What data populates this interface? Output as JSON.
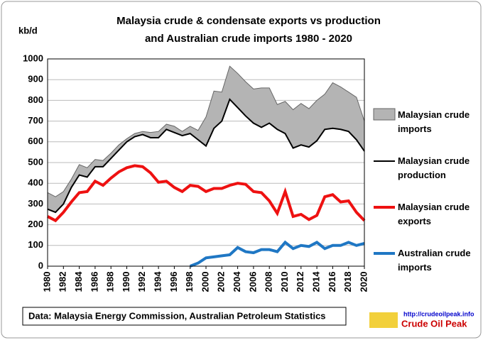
{
  "chart_data": {
    "type": "line",
    "title": [
      "Malaysia crude & condensate exports vs production",
      "and Australian crude imports 1980 - 2020"
    ],
    "y_label": "kb/d",
    "x": [
      1980,
      1981,
      1982,
      1983,
      1984,
      1985,
      1986,
      1987,
      1988,
      1989,
      1990,
      1991,
      1992,
      1993,
      1994,
      1995,
      1996,
      1997,
      1998,
      1999,
      2000,
      2001,
      2002,
      2003,
      2004,
      2005,
      2006,
      2007,
      2008,
      2009,
      2010,
      2011,
      2012,
      2013,
      2014,
      2015,
      2016,
      2017,
      2018,
      2019,
      2020
    ],
    "series": [
      {
        "name": "Malaysian crude imports",
        "color": "#b4b4b4",
        "style": "area",
        "base_series": 1,
        "values": [
          80,
          75,
          60,
          40,
          50,
          45,
          35,
          30,
          25,
          25,
          15,
          15,
          15,
          25,
          30,
          25,
          30,
          20,
          35,
          45,
          140,
          180,
          140,
          160,
          165,
          165,
          165,
          190,
          170,
          120,
          155,
          185,
          200,
          185,
          195,
          170,
          220,
          205,
          190,
          205,
          145
        ]
      },
      {
        "name": "Malaysian crude production",
        "color": "#000000",
        "style": "line",
        "values": [
          275,
          260,
          300,
          380,
          440,
          430,
          480,
          480,
          520,
          560,
          600,
          625,
          635,
          620,
          620,
          660,
          645,
          630,
          640,
          610,
          580,
          665,
          700,
          805,
          765,
          725,
          690,
          670,
          690,
          660,
          640,
          570,
          585,
          575,
          605,
          660,
          665,
          660,
          650,
          610,
          555
        ]
      },
      {
        "name": "Malaysian crude exports",
        "color": "#ee1111",
        "style": "line",
        "values": [
          240,
          220,
          260,
          310,
          355,
          360,
          410,
          390,
          425,
          455,
          475,
          485,
          480,
          450,
          405,
          410,
          380,
          360,
          390,
          385,
          360,
          375,
          375,
          390,
          400,
          395,
          360,
          355,
          315,
          255,
          360,
          240,
          250,
          225,
          245,
          335,
          345,
          310,
          315,
          260,
          220
        ]
      },
      {
        "name": "Australian crude imports",
        "color": "#1f77c4",
        "style": "line",
        "values": [
          null,
          null,
          null,
          null,
          null,
          null,
          null,
          null,
          null,
          null,
          null,
          null,
          null,
          null,
          null,
          null,
          null,
          null,
          0,
          15,
          40,
          45,
          50,
          55,
          90,
          70,
          65,
          80,
          80,
          70,
          115,
          85,
          100,
          95,
          115,
          85,
          100,
          100,
          115,
          100,
          110
        ]
      }
    ],
    "xlim": [
      1980,
      2020
    ],
    "xticks": [
      1980,
      1982,
      1984,
      1986,
      1988,
      1990,
      1992,
      1994,
      1996,
      1998,
      2000,
      2002,
      2004,
      2006,
      2008,
      2010,
      2012,
      2014,
      2016,
      2018,
      2020
    ],
    "ylim": [
      0,
      1000
    ],
    "yticks": [
      0,
      100,
      200,
      300,
      400,
      500,
      600,
      700,
      800,
      900,
      1000
    ],
    "grid": true,
    "legend": "right",
    "source": "Data: Malaysia Energy Commission, Australian Petroleum Statistics",
    "logo_url": "http://crudeoilpeak.info",
    "logo_name": "Crude Oil Peak"
  }
}
